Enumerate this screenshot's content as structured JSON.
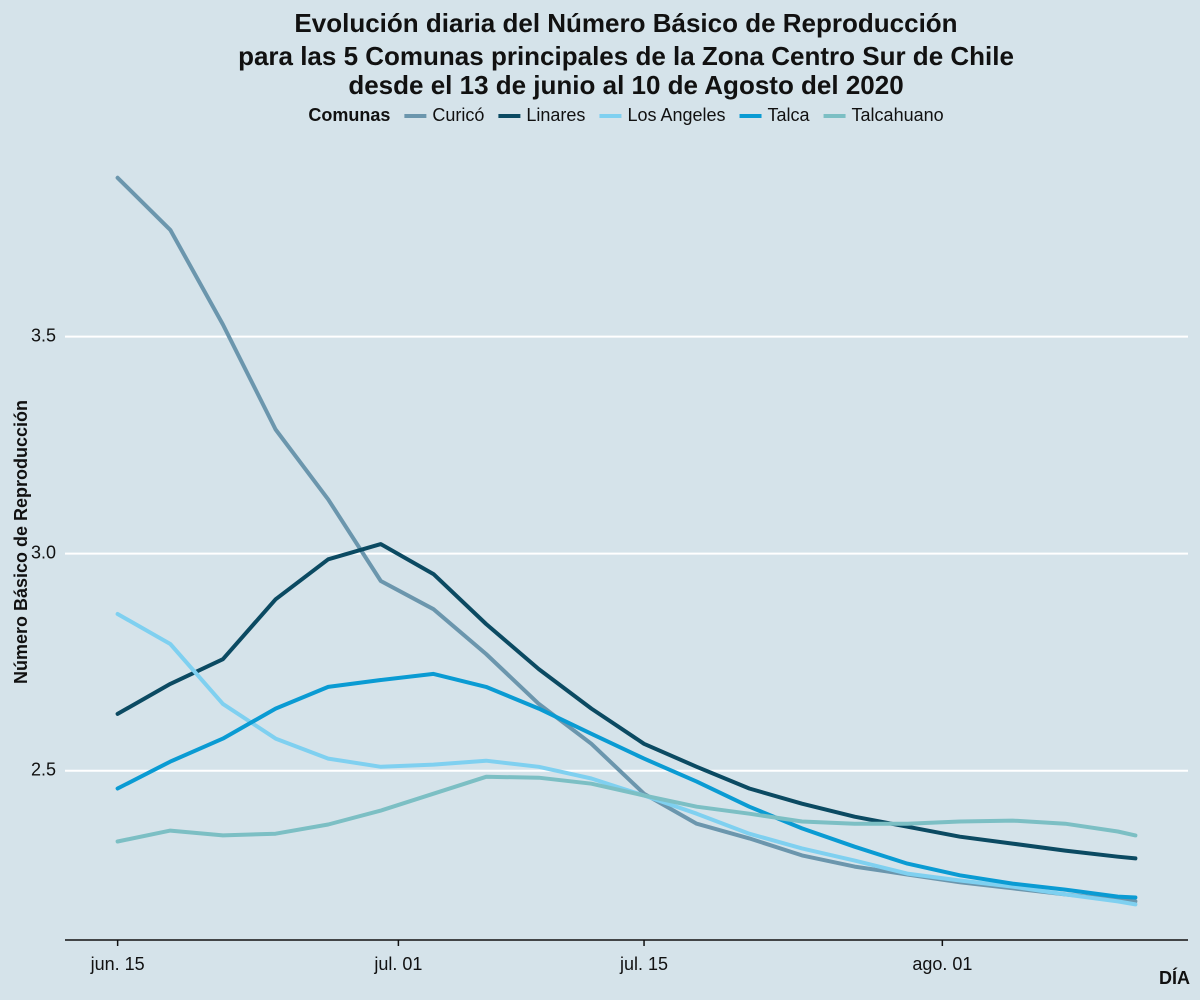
{
  "chart_data": {
    "type": "line",
    "title": [
      "Evolución diaria del Número Básico de Reproducción",
      "para las 5 Comunas principales de la Zona Centro Sur de Chile",
      "desde el 13 de junio al 10 de Agosto del 2020"
    ],
    "legend_title": "Comunas",
    "legend_position": "top",
    "x_label": "DÍA",
    "y_label": "Número Básico de Reproducción",
    "grid": true,
    "x": [
      "06-15",
      "06-18",
      "06-21",
      "06-24",
      "06-27",
      "06-30",
      "07-03",
      "07-06",
      "07-09",
      "07-12",
      "07-15",
      "07-18",
      "07-21",
      "07-24",
      "07-27",
      "07-30",
      "08-02",
      "08-05",
      "08-08",
      "08-11",
      "08-12"
    ],
    "xlim": [
      "06-12",
      "08-15"
    ],
    "xticks": [
      {
        "value": "06-15",
        "label": "jun. 15"
      },
      {
        "value": "07-01",
        "label": "jul. 01"
      },
      {
        "value": "07-15",
        "label": "jul. 15"
      },
      {
        "value": "08-01",
        "label": "ago. 01"
      }
    ],
    "ylim": [
      2.11,
      3.93
    ],
    "yticks": [
      2.5,
      {
        "value": 3,
        "label": "3.0"
      },
      3.5
    ],
    "series": [
      {
        "name": "Curicó",
        "color": "#6b96ad",
        "values": [
          3.866,
          3.746,
          3.528,
          3.286,
          3.125,
          2.937,
          2.872,
          2.769,
          2.654,
          2.562,
          2.447,
          2.378,
          2.344,
          2.305,
          2.279,
          2.261,
          2.243,
          2.229,
          2.215,
          2.203,
          2.199
        ]
      },
      {
        "name": "Linares",
        "color": "#0b4a62",
        "values": [
          2.631,
          2.7,
          2.757,
          2.895,
          2.987,
          3.022,
          2.953,
          2.838,
          2.734,
          2.643,
          2.562,
          2.509,
          2.459,
          2.424,
          2.394,
          2.371,
          2.348,
          2.332,
          2.316,
          2.302,
          2.298
        ]
      },
      {
        "name": "Los Angeles",
        "color": "#7fd0f0",
        "values": [
          2.861,
          2.792,
          2.654,
          2.574,
          2.528,
          2.509,
          2.514,
          2.523,
          2.509,
          2.482,
          2.443,
          2.401,
          2.355,
          2.321,
          2.293,
          2.263,
          2.247,
          2.233,
          2.215,
          2.199,
          2.192
        ]
      },
      {
        "name": "Talca",
        "color": "#0a9bd3",
        "values": [
          2.459,
          2.521,
          2.574,
          2.643,
          2.693,
          2.709,
          2.723,
          2.693,
          2.643,
          2.585,
          2.528,
          2.475,
          2.417,
          2.367,
          2.325,
          2.286,
          2.259,
          2.24,
          2.226,
          2.21,
          2.208
        ]
      },
      {
        "name": "Talcahuano",
        "color": "#7cbfc4",
        "values": [
          2.337,
          2.362,
          2.351,
          2.355,
          2.376,
          2.408,
          2.447,
          2.486,
          2.484,
          2.47,
          2.443,
          2.417,
          2.401,
          2.383,
          2.378,
          2.378,
          2.383,
          2.385,
          2.378,
          2.36,
          2.351
        ]
      }
    ]
  }
}
